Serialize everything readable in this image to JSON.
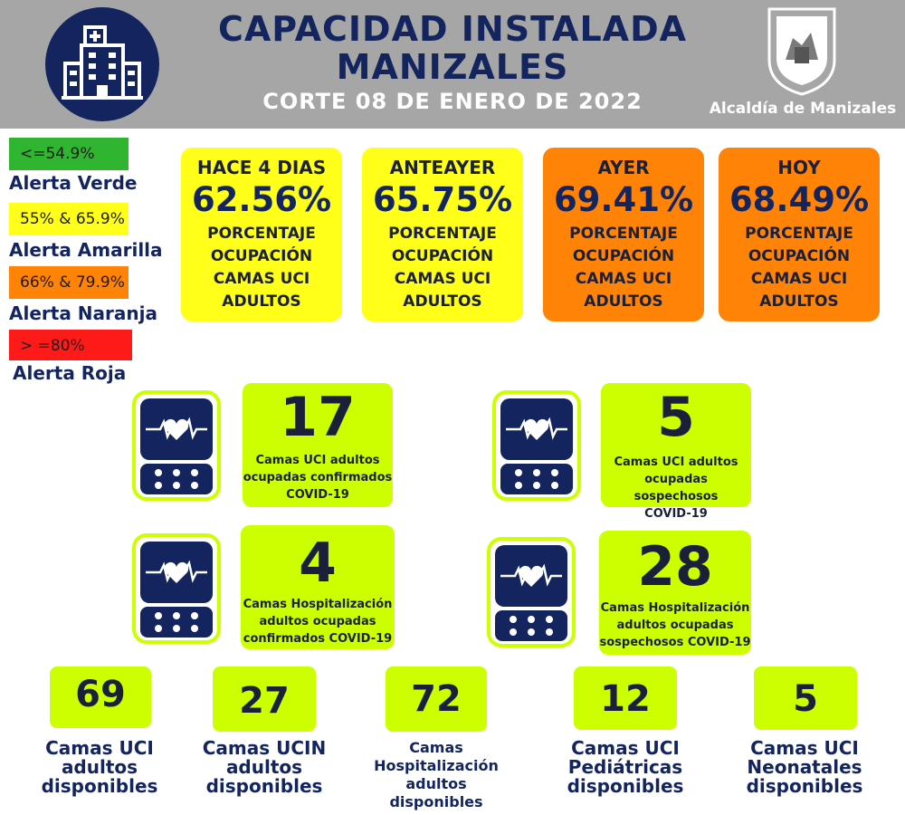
{
  "header": {
    "title_line1": "CAPACIDAD INSTALADA",
    "title_line2": "MANIZALES",
    "subtitle": "CORTE 08 DE ENERO DE 2022",
    "org_name": "Alcaldía de Manizales",
    "icon": "hospital-icon",
    "crest": "coat-of-arms-icon"
  },
  "legend": [
    {
      "range": "<=54.9%",
      "label": "Alerta Verde",
      "color": "#2fb52f"
    },
    {
      "range": "55% & 65.9%",
      "label": "Alerta Amarilla",
      "color": "#ffff1a"
    },
    {
      "range": "66% & 79.9%",
      "label": "Alerta Naranja",
      "color": "#ff8307"
    },
    {
      "range": "> =80%",
      "label": "Alerta Roja",
      "color": "#ff1a1a"
    }
  ],
  "occupancy_cards": [
    {
      "title": "HACE 4 DIAS",
      "value": "62.56%",
      "desc": [
        "PORCENTAJE",
        "OCUPACIÓN",
        "CAMAS UCI",
        "ADULTOS"
      ],
      "color": "#ffff1a"
    },
    {
      "title": "ANTEAYER",
      "value": "65.75%",
      "desc": [
        "PORCENTAJE",
        "OCUPACIÓN",
        "CAMAS UCI",
        "ADULTOS"
      ],
      "color": "#ffff1a"
    },
    {
      "title": "AYER",
      "value": "69.41%",
      "desc": [
        "PORCENTAJE",
        "OCUPACIÓN",
        "CAMAS UCI",
        "ADULTOS"
      ],
      "color": "#ff8307"
    },
    {
      "title": "HOY",
      "value": "68.49%",
      "desc": [
        "PORCENTAJE",
        "OCUPACIÓN",
        "CAMAS UCI",
        "ADULTOS"
      ],
      "color": "#ff8307"
    }
  ],
  "monitor_stats": [
    {
      "value": "17",
      "desc": [
        "Camas UCI adultos",
        "ocupadas confirmados",
        "COVID-19"
      ],
      "icon": "heart-monitor-icon"
    },
    {
      "value": "5",
      "desc": [
        "Camas UCI adultos",
        "ocupadas sospechosos",
        "COVID-19"
      ],
      "icon": "heart-monitor-icon"
    },
    {
      "value": "4",
      "desc": [
        "Camas  Hospitalización",
        "adultos ocupadas",
        "confirmados COVID-19"
      ],
      "icon": "heart-monitor-icon"
    },
    {
      "value": "28",
      "desc": [
        "Camas  Hospitalización",
        "adultos ocupadas",
        "sospechosos COVID-19"
      ],
      "icon": "heart-monitor-icon"
    }
  ],
  "available_beds": [
    {
      "value": "69",
      "label": [
        "Camas UCI",
        "adultos",
        "disponibles"
      ]
    },
    {
      "value": "27",
      "label": [
        "Camas UCIN",
        "adultos",
        "disponibles"
      ]
    },
    {
      "value": "72",
      "label": [
        "Camas",
        "Hospitalización",
        "adultos",
        "disponibles"
      ]
    },
    {
      "value": "12",
      "label": [
        "Camas  UCI",
        "Pediátricas",
        "disponibles"
      ]
    },
    {
      "value": "5",
      "label": [
        "Camas  UCI",
        "Neonatales",
        "disponibles"
      ]
    }
  ]
}
